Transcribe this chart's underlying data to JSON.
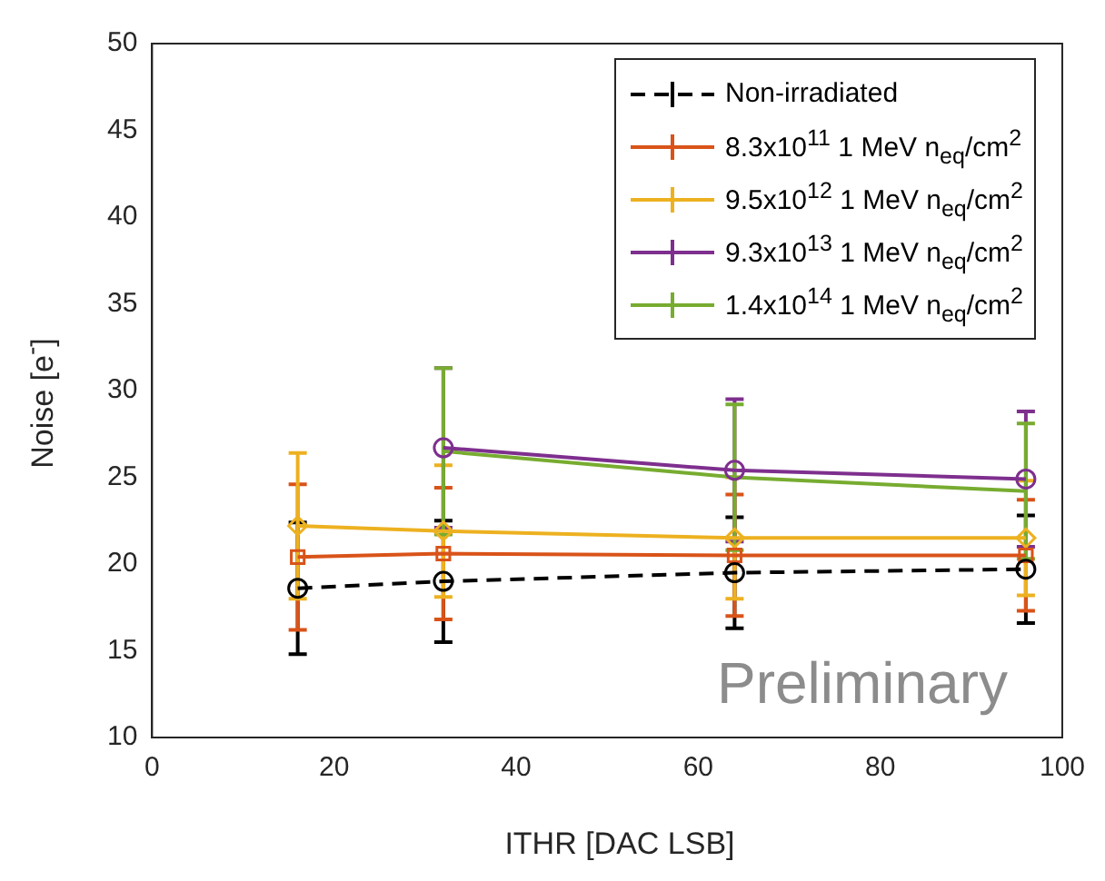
{
  "chart_data": {
    "type": "line",
    "xlabel": "ITHR [DAC LSB]",
    "ylabel": "Noise [e$^{-}$]",
    "x": [
      16,
      32,
      64,
      96
    ],
    "series": [
      {
        "name": "Non-irradiated",
        "color": "#000000",
        "values": [
          18.6,
          19.0,
          19.5,
          19.7
        ],
        "errors": [
          3.8,
          3.5,
          3.2,
          3.1
        ],
        "marker": "circle",
        "line_style": "dashed"
      },
      {
        "name": "8.3x10$^{11}$ 1 MeV n$_{eq}$/cm$^{2}$",
        "color": "#d95319",
        "values": [
          20.4,
          20.6,
          20.5,
          20.5
        ],
        "errors": [
          4.2,
          3.8,
          3.5,
          3.2
        ],
        "marker": "square",
        "line_style": "solid"
      },
      {
        "name": "9.5x10$^{12}$ 1 MeV n$_{eq}$/cm$^{2}$",
        "color": "#edb120",
        "values": [
          22.2,
          21.9,
          21.5,
          21.5
        ],
        "errors": [
          4.2,
          3.8,
          3.5,
          3.3
        ],
        "marker": "diamond",
        "line_style": "solid"
      },
      {
        "name": "9.3x10$^{13}$ 1 MeV n$_{eq}$/cm$^{2}$",
        "color": "#7e2f8e",
        "x": [
          32,
          64,
          96
        ],
        "values": [
          26.7,
          25.4,
          24.9
        ],
        "errors": [
          4.6,
          4.1,
          3.9
        ],
        "marker": "circle",
        "line_style": "solid"
      },
      {
        "name": "1.4x10$^{14}$ 1 MeV n$_{eq}$/cm$^{2}$",
        "color": "#77ac30",
        "x": [
          32,
          64,
          96
        ],
        "values": [
          26.5,
          25.0,
          24.2
        ],
        "errors": [
          4.8,
          4.2,
          3.9
        ],
        "marker": "none",
        "line_style": "solid"
      }
    ],
    "xlim": [
      0,
      100
    ],
    "xticks": [
      0,
      20,
      40,
      60,
      80,
      100
    ],
    "ylim": [
      10,
      50
    ],
    "yticks": [
      10,
      15,
      20,
      25,
      30,
      35,
      40,
      45,
      50
    ],
    "grid": false,
    "legend": "top right",
    "annotations": [
      "Preliminary"
    ]
  }
}
